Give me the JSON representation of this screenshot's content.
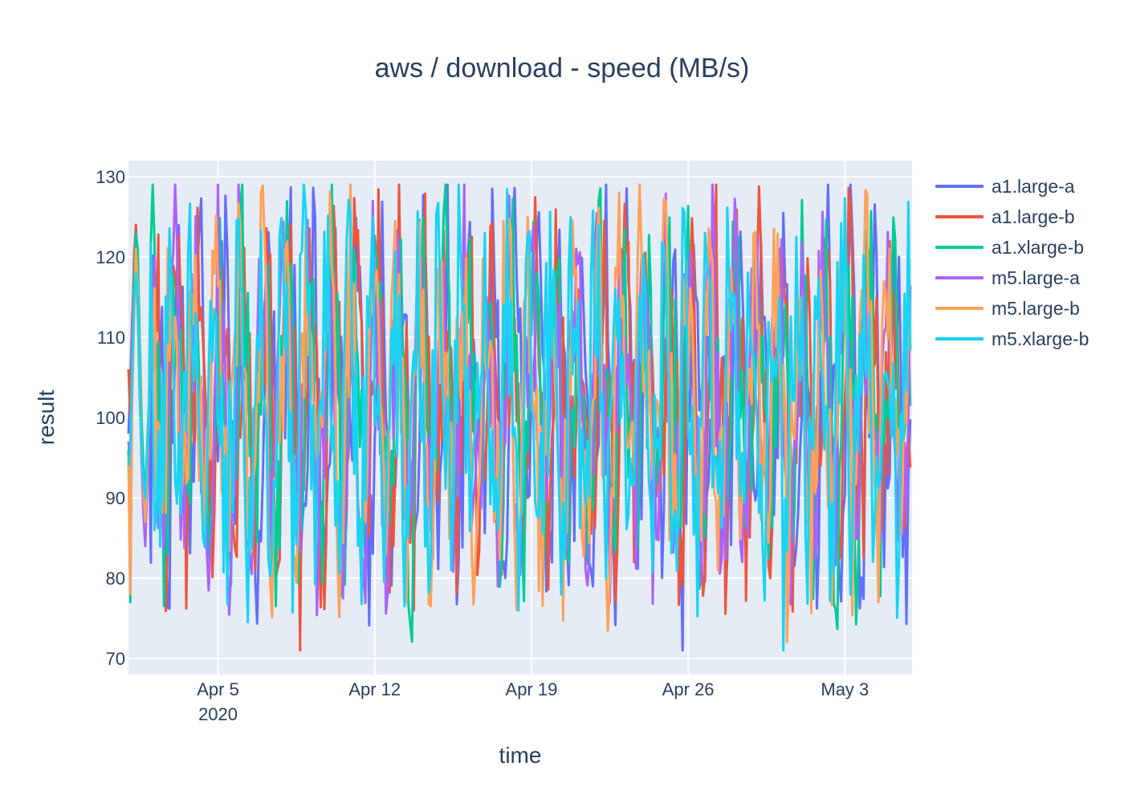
{
  "chart_data": {
    "type": "line",
    "title": "aws / download - speed (MB/s)",
    "xlabel": "time",
    "ylabel": "result",
    "x_range": [
      "2020-04-01",
      "2020-05-06"
    ],
    "ylim": [
      68,
      132
    ],
    "y_ticks": [
      70,
      80,
      90,
      100,
      110,
      120,
      130
    ],
    "x_ticks": [
      {
        "date": "2020-04-05",
        "label": "Apr 5",
        "sublabel": "2020"
      },
      {
        "date": "2020-04-12",
        "label": "Apr 12",
        "sublabel": ""
      },
      {
        "date": "2020-04-19",
        "label": "Apr 19",
        "sublabel": ""
      },
      {
        "date": "2020-04-26",
        "label": "Apr 26",
        "sublabel": ""
      },
      {
        "date": "2020-05-03",
        "label": "May 3",
        "sublabel": ""
      }
    ],
    "grid": true,
    "legend_position": "right",
    "background": "#e5ecf6",
    "grid_color": "#ffffff",
    "series": [
      {
        "name": "a1.large-a",
        "color": "#636efa",
        "samples_per_day": 12,
        "y_first_day": [
          98,
          104,
          112,
          118,
          122,
          115,
          105,
          96,
          90,
          86,
          92,
          100
        ]
      },
      {
        "name": "a1.large-b",
        "color": "#ef553b",
        "samples_per_day": 12,
        "y_first_day": [
          106,
          100,
          110,
          120,
          124,
          118,
          108,
          99,
          92,
          89,
          95,
          101
        ]
      },
      {
        "name": "a1.xlarge-b",
        "color": "#00cc96",
        "samples_per_day": 12,
        "y_first_day": [
          96,
          77,
          104,
          117,
          123,
          121,
          110,
          100,
          94,
          90,
          96,
          102
        ]
      },
      {
        "name": "m5.large-a",
        "color": "#ab63fa",
        "samples_per_day": 12,
        "y_first_day": [
          97,
          94,
          108,
          114,
          119,
          113,
          104,
          95,
          88,
          84,
          91,
          99
        ]
      },
      {
        "name": "m5.large-b",
        "color": "#ffa15a",
        "samples_per_day": 12,
        "y_first_day": [
          95,
          78,
          102,
          112,
          121,
          116,
          106,
          97,
          91,
          87,
          93,
          100
        ]
      },
      {
        "name": "m5.xlarge-b",
        "color": "#19d3f3",
        "samples_per_day": 12,
        "y_first_day": [
          94,
          96,
          106,
          115,
          118,
          114,
          103,
          96,
          92,
          90,
          95,
          99
        ]
      }
    ]
  }
}
